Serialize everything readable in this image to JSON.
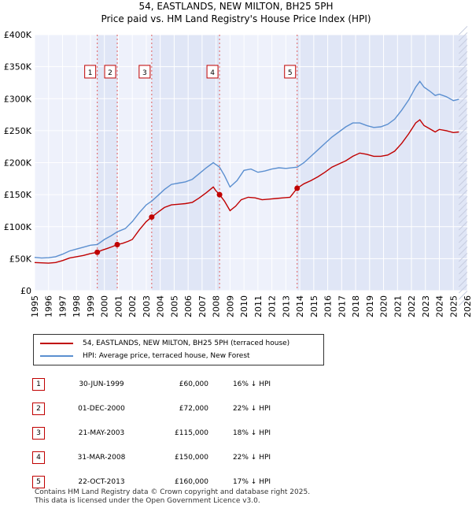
{
  "title_line1": "54, EASTLANDS, NEW MILTON, BH25 5PH",
  "title_line2": "Price paid vs. HM Land Registry's House Price Index (HPI)",
  "chart_data": {
    "type": "line",
    "title": "54, EASTLANDS, NEW MILTON, BH25 5PH — Price paid vs. HM Land Registry's House Price Index (HPI)",
    "xlim": [
      1995,
      2026
    ],
    "ylim": [
      0,
      400000
    ],
    "x_ticks": [
      "1995",
      "1996",
      "1997",
      "1998",
      "1999",
      "2000",
      "2001",
      "2002",
      "2003",
      "2004",
      "2005",
      "2006",
      "2007",
      "2008",
      "2009",
      "2010",
      "2011",
      "2012",
      "2013",
      "2014",
      "2015",
      "2016",
      "2017",
      "2018",
      "2019",
      "2020",
      "2021",
      "2022",
      "2023",
      "2024",
      "2025",
      "2026"
    ],
    "y_ticks": [
      {
        "value": 0,
        "label": "£0"
      },
      {
        "value": 50000,
        "label": "£50K"
      },
      {
        "value": 100000,
        "label": "£100K"
      },
      {
        "value": 150000,
        "label": "£150K"
      },
      {
        "value": 200000,
        "label": "£200K"
      },
      {
        "value": 250000,
        "label": "£250K"
      },
      {
        "value": 300000,
        "label": "£300K"
      },
      {
        "value": 350000,
        "label": "£350K"
      },
      {
        "value": 400000,
        "label": "£400K"
      }
    ],
    "series": [
      {
        "name": "54, EASTLANDS, NEW MILTON, BH25 5PH (terraced house)",
        "color": "#c00000",
        "points": [
          [
            1995.0,
            44000
          ],
          [
            1995.5,
            43500
          ],
          [
            1996.0,
            43000
          ],
          [
            1996.5,
            44000
          ],
          [
            1997.0,
            47000
          ],
          [
            1997.5,
            51000
          ],
          [
            1998.0,
            53000
          ],
          [
            1998.5,
            55000
          ],
          [
            1999.0,
            58000
          ],
          [
            1999.49,
            60000
          ],
          [
            1999.8,
            63000
          ],
          [
            2000.2,
            66000
          ],
          [
            2000.6,
            69000
          ],
          [
            2000.92,
            72000
          ],
          [
            2001.3,
            74000
          ],
          [
            2001.7,
            77000
          ],
          [
            2002.0,
            80000
          ],
          [
            2002.5,
            95000
          ],
          [
            2003.0,
            108000
          ],
          [
            2003.39,
            115000
          ],
          [
            2003.8,
            122000
          ],
          [
            2004.3,
            130000
          ],
          [
            2004.8,
            134000
          ],
          [
            2005.3,
            135000
          ],
          [
            2005.8,
            136000
          ],
          [
            2006.3,
            138000
          ],
          [
            2006.8,
            145000
          ],
          [
            2007.3,
            153000
          ],
          [
            2007.8,
            162000
          ],
          [
            2008.0,
            156000
          ],
          [
            2008.25,
            150000
          ],
          [
            2008.6,
            140000
          ],
          [
            2009.0,
            125000
          ],
          [
            2009.4,
            132000
          ],
          [
            2009.8,
            142000
          ],
          [
            2010.3,
            146000
          ],
          [
            2010.8,
            145000
          ],
          [
            2011.3,
            142000
          ],
          [
            2011.8,
            143000
          ],
          [
            2012.3,
            144000
          ],
          [
            2012.8,
            145000
          ],
          [
            2013.3,
            146000
          ],
          [
            2013.81,
            160000
          ],
          [
            2014.3,
            167000
          ],
          [
            2014.8,
            172000
          ],
          [
            2015.3,
            178000
          ],
          [
            2015.8,
            185000
          ],
          [
            2016.3,
            193000
          ],
          [
            2016.8,
            198000
          ],
          [
            2017.3,
            203000
          ],
          [
            2017.8,
            210000
          ],
          [
            2018.3,
            215000
          ],
          [
            2018.8,
            213000
          ],
          [
            2019.3,
            210000
          ],
          [
            2019.8,
            210000
          ],
          [
            2020.3,
            212000
          ],
          [
            2020.8,
            218000
          ],
          [
            2021.3,
            230000
          ],
          [
            2021.8,
            245000
          ],
          [
            2022.3,
            262000
          ],
          [
            2022.6,
            267000
          ],
          [
            2022.9,
            258000
          ],
          [
            2023.3,
            253000
          ],
          [
            2023.7,
            248000
          ],
          [
            2024.0,
            252000
          ],
          [
            2024.5,
            250000
          ],
          [
            2025.0,
            247000
          ],
          [
            2025.4,
            248000
          ]
        ]
      },
      {
        "name": "HPI: Average price, terraced house, New Forest",
        "color": "#5b8fd0",
        "points": [
          [
            1995.0,
            52000
          ],
          [
            1995.5,
            51000
          ],
          [
            1996.0,
            51500
          ],
          [
            1996.5,
            53000
          ],
          [
            1997.0,
            57000
          ],
          [
            1997.5,
            62000
          ],
          [
            1998.0,
            65000
          ],
          [
            1998.5,
            68000
          ],
          [
            1999.0,
            71000
          ],
          [
            1999.49,
            72000
          ],
          [
            2000.0,
            80000
          ],
          [
            2000.5,
            86000
          ],
          [
            2000.92,
            92000
          ],
          [
            2001.5,
            97000
          ],
          [
            2002.0,
            108000
          ],
          [
            2002.5,
            122000
          ],
          [
            2003.0,
            134000
          ],
          [
            2003.39,
            140000
          ],
          [
            2003.8,
            148000
          ],
          [
            2004.3,
            158000
          ],
          [
            2004.8,
            166000
          ],
          [
            2005.3,
            168000
          ],
          [
            2005.8,
            170000
          ],
          [
            2006.3,
            174000
          ],
          [
            2006.8,
            183000
          ],
          [
            2007.3,
            192000
          ],
          [
            2007.8,
            200000
          ],
          [
            2008.25,
            193000
          ],
          [
            2008.6,
            180000
          ],
          [
            2009.0,
            162000
          ],
          [
            2009.5,
            172000
          ],
          [
            2010.0,
            188000
          ],
          [
            2010.5,
            190000
          ],
          [
            2011.0,
            185000
          ],
          [
            2011.5,
            187000
          ],
          [
            2012.0,
            190000
          ],
          [
            2012.5,
            192000
          ],
          [
            2013.0,
            191000
          ],
          [
            2013.81,
            193000
          ],
          [
            2014.3,
            200000
          ],
          [
            2014.8,
            210000
          ],
          [
            2015.3,
            220000
          ],
          [
            2015.8,
            230000
          ],
          [
            2016.3,
            240000
          ],
          [
            2016.8,
            248000
          ],
          [
            2017.3,
            256000
          ],
          [
            2017.8,
            262000
          ],
          [
            2018.3,
            262000
          ],
          [
            2018.8,
            258000
          ],
          [
            2019.3,
            255000
          ],
          [
            2019.8,
            256000
          ],
          [
            2020.3,
            260000
          ],
          [
            2020.8,
            268000
          ],
          [
            2021.3,
            282000
          ],
          [
            2021.8,
            298000
          ],
          [
            2022.3,
            318000
          ],
          [
            2022.6,
            327000
          ],
          [
            2022.9,
            318000
          ],
          [
            2023.3,
            312000
          ],
          [
            2023.7,
            305000
          ],
          [
            2024.0,
            307000
          ],
          [
            2024.5,
            303000
          ],
          [
            2025.0,
            297000
          ],
          [
            2025.4,
            299000
          ]
        ]
      }
    ],
    "sales": [
      {
        "id": "1",
        "x": 1999.49,
        "price": 60000
      },
      {
        "id": "2",
        "x": 2000.92,
        "price": 72000
      },
      {
        "id": "3",
        "x": 2003.39,
        "price": 115000
      },
      {
        "id": "4",
        "x": 2008.25,
        "price": 150000
      },
      {
        "id": "5",
        "x": 2013.81,
        "price": 160000
      }
    ]
  },
  "legend": {
    "property": "54, EASTLANDS, NEW MILTON, BH25 5PH (terraced house)",
    "hpi": "HPI: Average price, terraced house, New Forest"
  },
  "table": [
    {
      "num": "1",
      "date": "30-JUN-1999",
      "price": "£60,000",
      "hpi": "16% ↓ HPI"
    },
    {
      "num": "2",
      "date": "01-DEC-2000",
      "price": "£72,000",
      "hpi": "22% ↓ HPI"
    },
    {
      "num": "3",
      "date": "21-MAY-2003",
      "price": "£115,000",
      "hpi": "18% ↓ HPI"
    },
    {
      "num": "4",
      "date": "31-MAR-2008",
      "price": "£150,000",
      "hpi": "22% ↓ HPI"
    },
    {
      "num": "5",
      "date": "22-OCT-2013",
      "price": "£160,000",
      "hpi": "17% ↓ HPI"
    }
  ],
  "footer": {
    "line1": "Contains HM Land Registry data © Crown copyright and database right 2025.",
    "line2": "This data is licensed under the Open Government Licence v3.0."
  }
}
